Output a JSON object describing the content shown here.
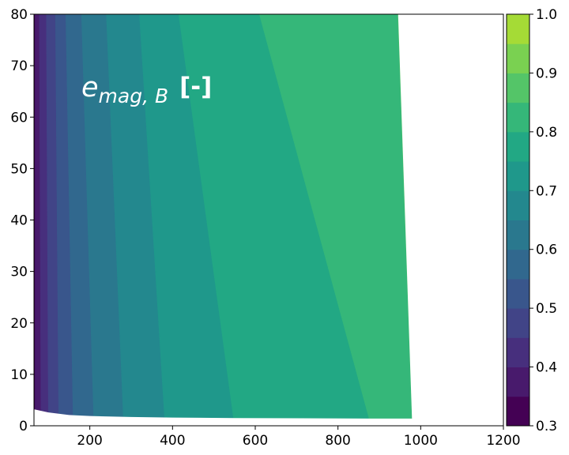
{
  "chart_data": {
    "type": "heatmap",
    "title": "",
    "xlabel": "",
    "ylabel": "",
    "xlim": [
      65,
      1200
    ],
    "ylim": [
      0,
      80
    ],
    "x_ticks": [
      "200",
      "400",
      "600",
      "800",
      "1000",
      "1200"
    ],
    "x_tick_values": [
      200,
      400,
      600,
      800,
      1000,
      1200
    ],
    "y_ticks": [
      "0",
      "10",
      "20",
      "30",
      "40",
      "50",
      "60",
      "70",
      "80"
    ],
    "y_tick_values": [
      0,
      10,
      20,
      30,
      40,
      50,
      60,
      70,
      80
    ],
    "annotation": {
      "symbol": "e",
      "subscript": "mag, B",
      "unit": "[-]"
    },
    "colorbar": {
      "levels": [
        0.3,
        0.35,
        0.4,
        0.45,
        0.5,
        0.55,
        0.6,
        0.65,
        0.7,
        0.75,
        0.8,
        0.85,
        0.9,
        0.95,
        1.0
      ],
      "colors": [
        "#440154",
        "#481a6c",
        "#472f7d",
        "#414487",
        "#39568c",
        "#31688e",
        "#2a788e",
        "#23888e",
        "#1f988b",
        "#22a884",
        "#35b779",
        "#54c568",
        "#7ad151",
        "#a5db36",
        "#d2e21b",
        "#fde725"
      ],
      "tick_labels": [
        "0.3",
        "0.4",
        "0.5",
        "0.6",
        "0.7",
        "0.8",
        "0.9",
        "1.0"
      ],
      "tick_values": [
        0.3,
        0.4,
        0.5,
        0.6,
        0.7,
        0.8,
        0.9,
        1.0
      ]
    },
    "boundaries": [
      {
        "level": 0.35,
        "x_bottom": 68,
        "x_top": 68
      },
      {
        "level": 0.4,
        "x_bottom": 82,
        "x_top": 78
      },
      {
        "level": 0.45,
        "x_bottom": 100,
        "x_top": 95
      },
      {
        "level": 0.5,
        "x_bottom": 125,
        "x_top": 117
      },
      {
        "level": 0.55,
        "x_bottom": 160,
        "x_top": 142
      },
      {
        "level": 0.6,
        "x_bottom": 210,
        "x_top": 180
      },
      {
        "level": 0.65,
        "x_bottom": 282,
        "x_top": 240
      },
      {
        "level": 0.7,
        "x_bottom": 382,
        "x_top": 320
      },
      {
        "level": 0.75,
        "x_bottom": 550,
        "x_top": 415
      },
      {
        "level": 0.8,
        "x_bottom": 880,
        "x_top": 610
      },
      {
        "level": 0.85,
        "x_bottom": 980,
        "x_top": 945
      }
    ],
    "domain_edges": {
      "bottom_y": [
        [
          65,
          3.2
        ],
        [
          100,
          2.6
        ],
        [
          150,
          2.1
        ],
        [
          200,
          1.9
        ],
        [
          300,
          1.7
        ],
        [
          400,
          1.6
        ],
        [
          550,
          1.5
        ],
        [
          880,
          1.4
        ],
        [
          980,
          1.4
        ]
      ],
      "right_x": [
        [
          0,
          980
        ],
        [
          80,
          945
        ]
      ]
    },
    "grid": false,
    "legend": "colorbar-right"
  }
}
